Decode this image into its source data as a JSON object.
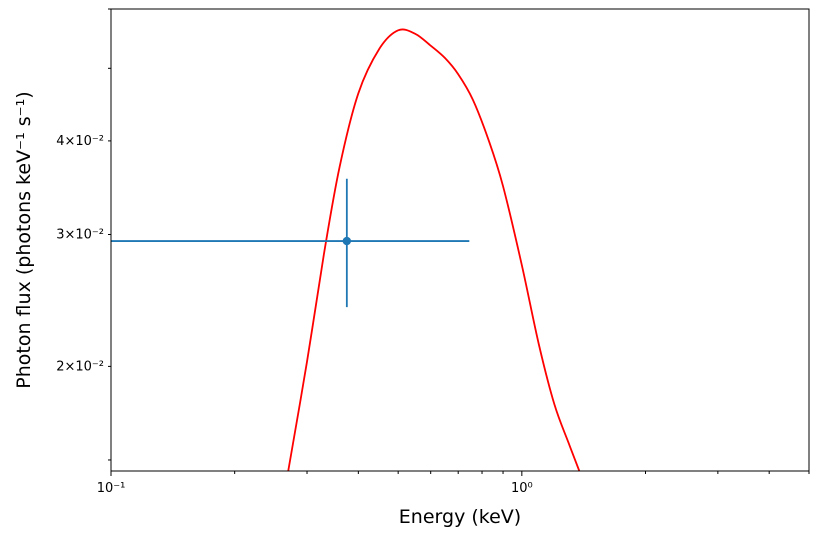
{
  "chart_data": {
    "type": "scatter",
    "xlabel": "Energy (keV)",
    "ylabel": "Photon flux (photons keV⁻¹ s⁻¹)",
    "xscale": "log",
    "yscale": "log",
    "xlim": [
      0.1,
      5.0
    ],
    "ylim": [
      0.0145,
      0.06
    ],
    "grid": false,
    "x_ticks": [
      {
        "value": 0.1,
        "label": "10⁻¹"
      },
      {
        "value": 1.0,
        "label": "10⁰"
      }
    ],
    "y_ticks": [
      {
        "value": 0.02,
        "label": "2×10⁻²"
      },
      {
        "value": 0.03,
        "label": "3×10⁻²"
      },
      {
        "value": 0.04,
        "label": "4×10⁻²"
      }
    ],
    "colors": {
      "data": "#1f77b4",
      "model": "#ff0000"
    },
    "series": [
      {
        "kind": "errorbar",
        "x": [
          0.375
        ],
        "y": [
          0.0294
        ],
        "xerr_low": [
          0.275
        ],
        "xerr_high": [
          0.37
        ],
        "yerr_low": [
          0.0054
        ],
        "yerr_high": [
          0.0062
        ]
      },
      {
        "kind": "line",
        "x": [
          0.27,
          0.3,
          0.33,
          0.36,
          0.4,
          0.45,
          0.5,
          0.55,
          0.6,
          0.65,
          0.7,
          0.76,
          0.83,
          0.9,
          1.0,
          1.1,
          1.2,
          1.3,
          1.38
        ],
        "y": [
          0.0145,
          0.0203,
          0.0283,
          0.0369,
          0.0463,
          0.0531,
          0.0562,
          0.0556,
          0.0536,
          0.0516,
          0.0491,
          0.0454,
          0.0401,
          0.0348,
          0.0273,
          0.0214,
          0.0178,
          0.0158,
          0.0145
        ]
      }
    ]
  }
}
